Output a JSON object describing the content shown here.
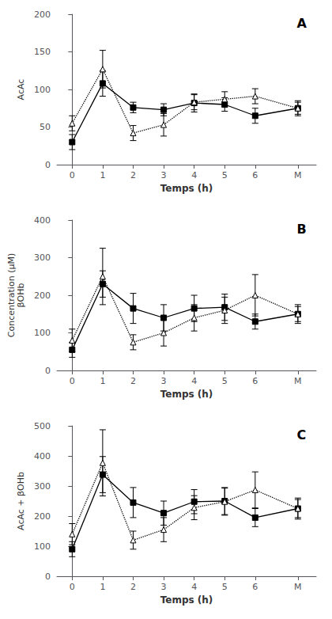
{
  "chart_data": [
    {
      "type": "line",
      "title": "A",
      "xlabel": "Temps (h)",
      "ylabel": "AcAc",
      "x": [
        0,
        1,
        2,
        3,
        4,
        5,
        6,
        7.4
      ],
      "xlim": [
        -0.5,
        8.0
      ],
      "xticks": [
        0,
        1,
        2,
        3,
        4,
        5,
        6,
        {
          "value": 7.4,
          "label": "M"
        }
      ],
      "ylim": [
        0,
        200
      ],
      "yticks": [
        0,
        50,
        100,
        150,
        200
      ],
      "grid": false,
      "series": [
        {
          "color": "black",
          "marker": "square",
          "line_style": "solid",
          "values": [
            30,
            108,
            76,
            73,
            82,
            80,
            65,
            75
          ],
          "errors": [
            10,
            17,
            7,
            8,
            12,
            9,
            10,
            8
          ]
        },
        {
          "color": "black",
          "marker": "open_triangle",
          "line_style": "dotted",
          "values": [
            55,
            127,
            42,
            53,
            83,
            87,
            91,
            75
          ],
          "errors": [
            10,
            25,
            10,
            15,
            10,
            10,
            10,
            10
          ]
        }
      ]
    },
    {
      "type": "line",
      "title": "B",
      "xlabel": "Temps (h)",
      "ylabel": "βOHb",
      "annotations": [
        "Concentration (µM)"
      ],
      "x": [
        0,
        1,
        2,
        3,
        4,
        5,
        6,
        7.4
      ],
      "xlim": [
        -0.5,
        8.0
      ],
      "xticks": [
        0,
        1,
        2,
        3,
        4,
        5,
        6,
        {
          "value": 7.4,
          "label": "M"
        }
      ],
      "ylim": [
        0,
        400
      ],
      "yticks": [
        0,
        100,
        200,
        300,
        400
      ],
      "grid": false,
      "series": [
        {
          "color": "black",
          "marker": "square",
          "line_style": "solid",
          "values": [
            55,
            230,
            165,
            140,
            165,
            168,
            130,
            150
          ],
          "errors": [
            20,
            35,
            40,
            35,
            35,
            35,
            20,
            25
          ]
        },
        {
          "color": "black",
          "marker": "open_triangle",
          "line_style": "dotted",
          "values": [
            80,
            250,
            75,
            100,
            140,
            160,
            200,
            150
          ],
          "errors": [
            30,
            75,
            20,
            35,
            35,
            35,
            55,
            20
          ]
        }
      ]
    },
    {
      "type": "line",
      "title": "C",
      "xlabel": "Temps (h)",
      "ylabel": "AcAc + βOHb",
      "x": [
        0,
        1,
        2,
        3,
        4,
        5,
        6,
        7.4
      ],
      "xlim": [
        -0.5,
        8.0
      ],
      "xticks": [
        0,
        1,
        2,
        3,
        4,
        5,
        6,
        {
          "value": 7.4,
          "label": "M"
        }
      ],
      "ylim": [
        0,
        500
      ],
      "yticks": [
        0,
        100,
        200,
        300,
        400,
        500
      ],
      "grid": false,
      "series": [
        {
          "color": "black",
          "marker": "square",
          "line_style": "solid",
          "values": [
            90,
            338,
            245,
            210,
            248,
            250,
            195,
            225
          ],
          "errors": [
            25,
            60,
            50,
            40,
            40,
            45,
            30,
            35
          ]
        },
        {
          "color": "black",
          "marker": "open_triangle",
          "line_style": "dotted",
          "values": [
            140,
            377,
            120,
            155,
            228,
            248,
            287,
            225
          ],
          "errors": [
            35,
            110,
            30,
            40,
            40,
            45,
            60,
            30
          ]
        }
      ]
    }
  ]
}
